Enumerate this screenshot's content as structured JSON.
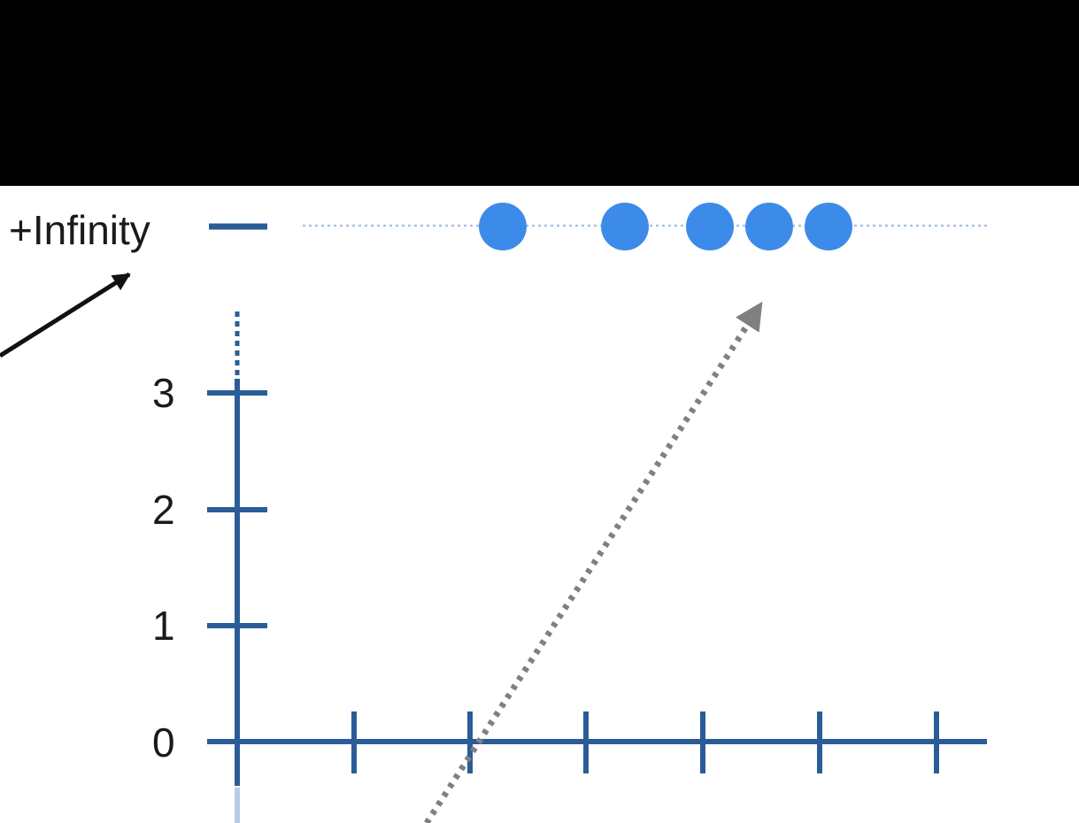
{
  "labels": {
    "infinity": "+Infinity",
    "y_ticks": [
      "3",
      "2",
      "1",
      "0"
    ]
  },
  "chart_data": {
    "type": "scatter",
    "y_ticks": [
      0,
      1,
      2,
      3
    ],
    "x_tick_count": 6,
    "points_at_infinity_count": 5,
    "grid": false,
    "arrows": [
      {
        "name": "pointer-to-infinity",
        "style": "solid",
        "color": "#111111"
      },
      {
        "name": "trend-to-infinity",
        "style": "dotted",
        "color": "#808080"
      }
    ]
  },
  "colors": {
    "axis": "#2a5d97",
    "point": "#3d8be8",
    "dotted_guide": "#a8c3e0",
    "solid_arrow": "#111111",
    "dotted_arrow": "#808080",
    "top_band": "#000000"
  }
}
